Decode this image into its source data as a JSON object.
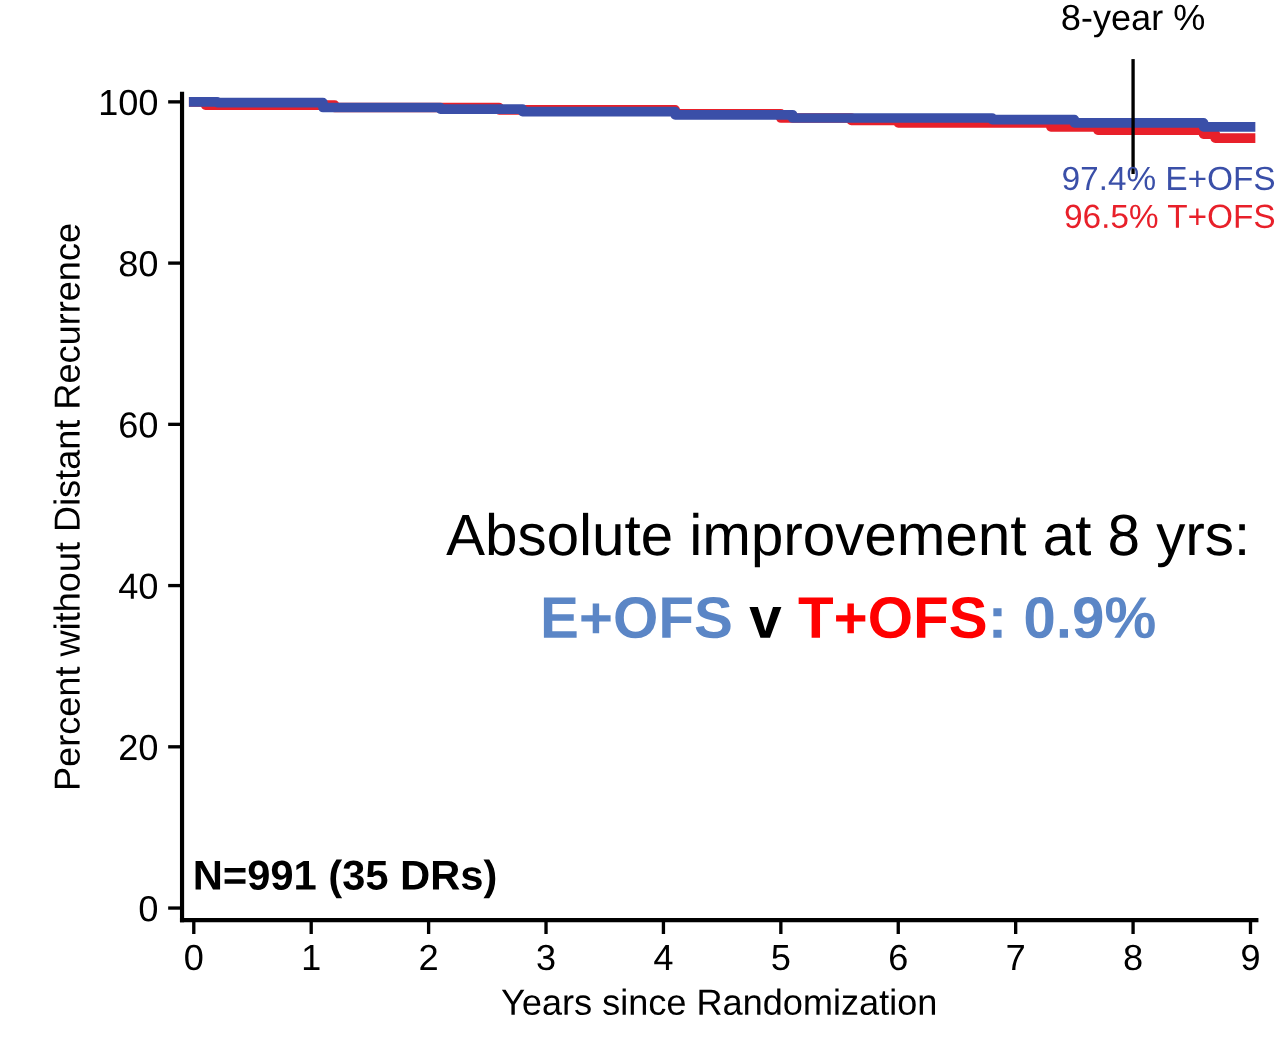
{
  "chart_data": {
    "type": "step",
    "xlabel": "Years since Randomization",
    "ylabel": "Percent without Distant Recurrence",
    "xlim": [
      -0.1,
      9.05
    ],
    "ylim": [
      -1.5,
      101
    ],
    "xticks": [
      0,
      1,
      2,
      3,
      4,
      5,
      6,
      7,
      8,
      9
    ],
    "yticks": [
      0,
      20,
      40,
      60,
      80,
      100
    ],
    "grid": false,
    "legend": false,
    "series": [
      {
        "color": "#e8202a",
        "x": [
          0,
          0.1,
          1.2,
          2.6,
          4.1,
          5.0,
          5.6,
          6.0,
          7.3,
          7.7,
          8.6,
          8.7,
          9.0
        ],
        "values": [
          100,
          99.6,
          99.3,
          99.0,
          98.5,
          98.0,
          97.7,
          97.4,
          96.9,
          96.5,
          96.0,
          95.5,
          95.5
        ]
      },
      {
        "color": "#3a4fa8",
        "x": [
          0,
          0.2,
          1.1,
          2.1,
          2.8,
          4.1,
          5.1,
          6.8,
          7.5,
          8.6,
          9.0
        ],
        "values": [
          100,
          99.9,
          99.3,
          99.1,
          98.8,
          98.4,
          98.0,
          97.8,
          97.4,
          96.9,
          96.9
        ]
      }
    ],
    "ref_lines": [
      {
        "axis": "x",
        "value": 8,
        "label": "8-year %",
        "color": "#000000"
      }
    ],
    "annotations": [
      "96.5% T+OFS",
      "97.4% E+OFS",
      "Absolute improvement at 8 yrs:",
      "E+OFS",
      " v ",
      "T+OFS",
      ": 0.9%",
      "N=991 (35 DRs)"
    ]
  }
}
